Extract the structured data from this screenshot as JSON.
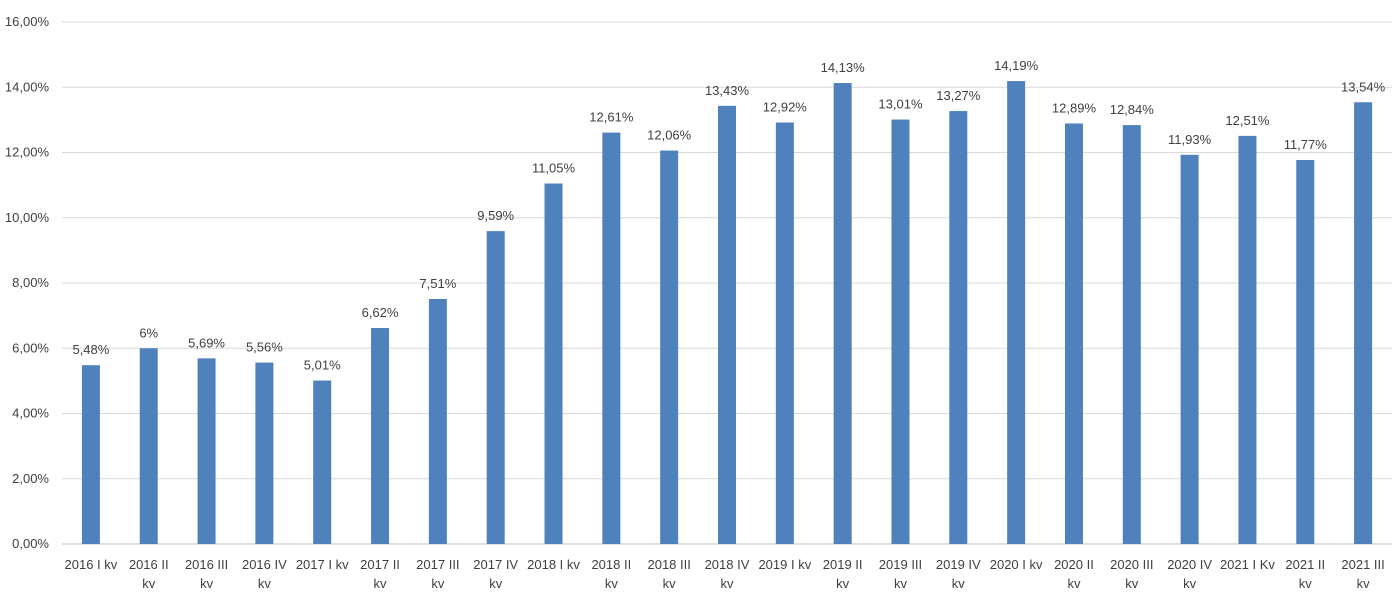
{
  "chart_data": {
    "type": "bar",
    "categories": [
      [
        "2016 I kv"
      ],
      [
        "2016 II",
        "kv"
      ],
      [
        "2016 III",
        "kv"
      ],
      [
        "2016 IV",
        "kv"
      ],
      [
        "2017 I kv"
      ],
      [
        "2017 II",
        "kv"
      ],
      [
        "2017 III",
        "kv"
      ],
      [
        "2017 IV",
        "kv"
      ],
      [
        "2018 I kv"
      ],
      [
        "2018 II",
        "kv"
      ],
      [
        "2018 III",
        "kv"
      ],
      [
        "2018 IV",
        "kv"
      ],
      [
        "2019 I kv"
      ],
      [
        "2019 II",
        "kv"
      ],
      [
        "2019 III",
        "kv"
      ],
      [
        "2019 IV",
        "kv"
      ],
      [
        "2020 I kv"
      ],
      [
        "2020 II",
        "kv"
      ],
      [
        "2020 III",
        "kv"
      ],
      [
        "2020 IV",
        "kv"
      ],
      [
        "2021 I Kv"
      ],
      [
        "2021 II",
        "kv"
      ],
      [
        "2021 III",
        "kv"
      ]
    ],
    "values": [
      5.48,
      6,
      5.69,
      5.56,
      5.01,
      6.62,
      7.51,
      9.59,
      11.05,
      12.61,
      12.06,
      13.43,
      12.92,
      14.13,
      13.01,
      13.27,
      14.19,
      12.89,
      12.84,
      11.93,
      12.51,
      11.77,
      13.54
    ],
    "data_labels": [
      "5,48%",
      "6%",
      "5,69%",
      "5,56%",
      "5,01%",
      "6,62%",
      "7,51%",
      "9,59%",
      "11,05%",
      "12,61%",
      "12,06%",
      "13,43%",
      "12,92%",
      "14,13%",
      "13,01%",
      "13,27%",
      "14,19%",
      "12,89%",
      "12,84%",
      "11,93%",
      "12,51%",
      "11,77%",
      "13,54%"
    ],
    "y_ticks": [
      "0,00%",
      "2,00%",
      "4,00%",
      "6,00%",
      "8,00%",
      "10,00%",
      "12,00%",
      "14,00%",
      "16,00%"
    ],
    "ylim": [
      0,
      16
    ],
    "y_step": 2,
    "grid": true,
    "colors": {
      "bar": "#4f81bd",
      "grid": "#d9d9d9",
      "text": "#404040"
    }
  }
}
